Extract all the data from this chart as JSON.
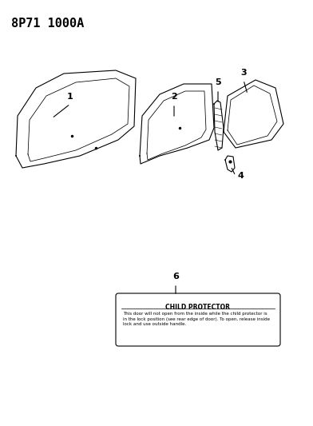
{
  "title": "8P71 1000A",
  "bg_color": "#ffffff",
  "line_color": "#000000",
  "label_color": "#000000",
  "part_numbers": [
    "1",
    "2",
    "3",
    "4",
    "5",
    "6"
  ],
  "callout_box_title": "CHILD PROTECTOR",
  "callout_box_text": "This door will not open from the inside while the child protector is\nin the lock position (see rear edge of door). To open, release inside\nlock and use outside handle.",
  "callout_label": "6"
}
